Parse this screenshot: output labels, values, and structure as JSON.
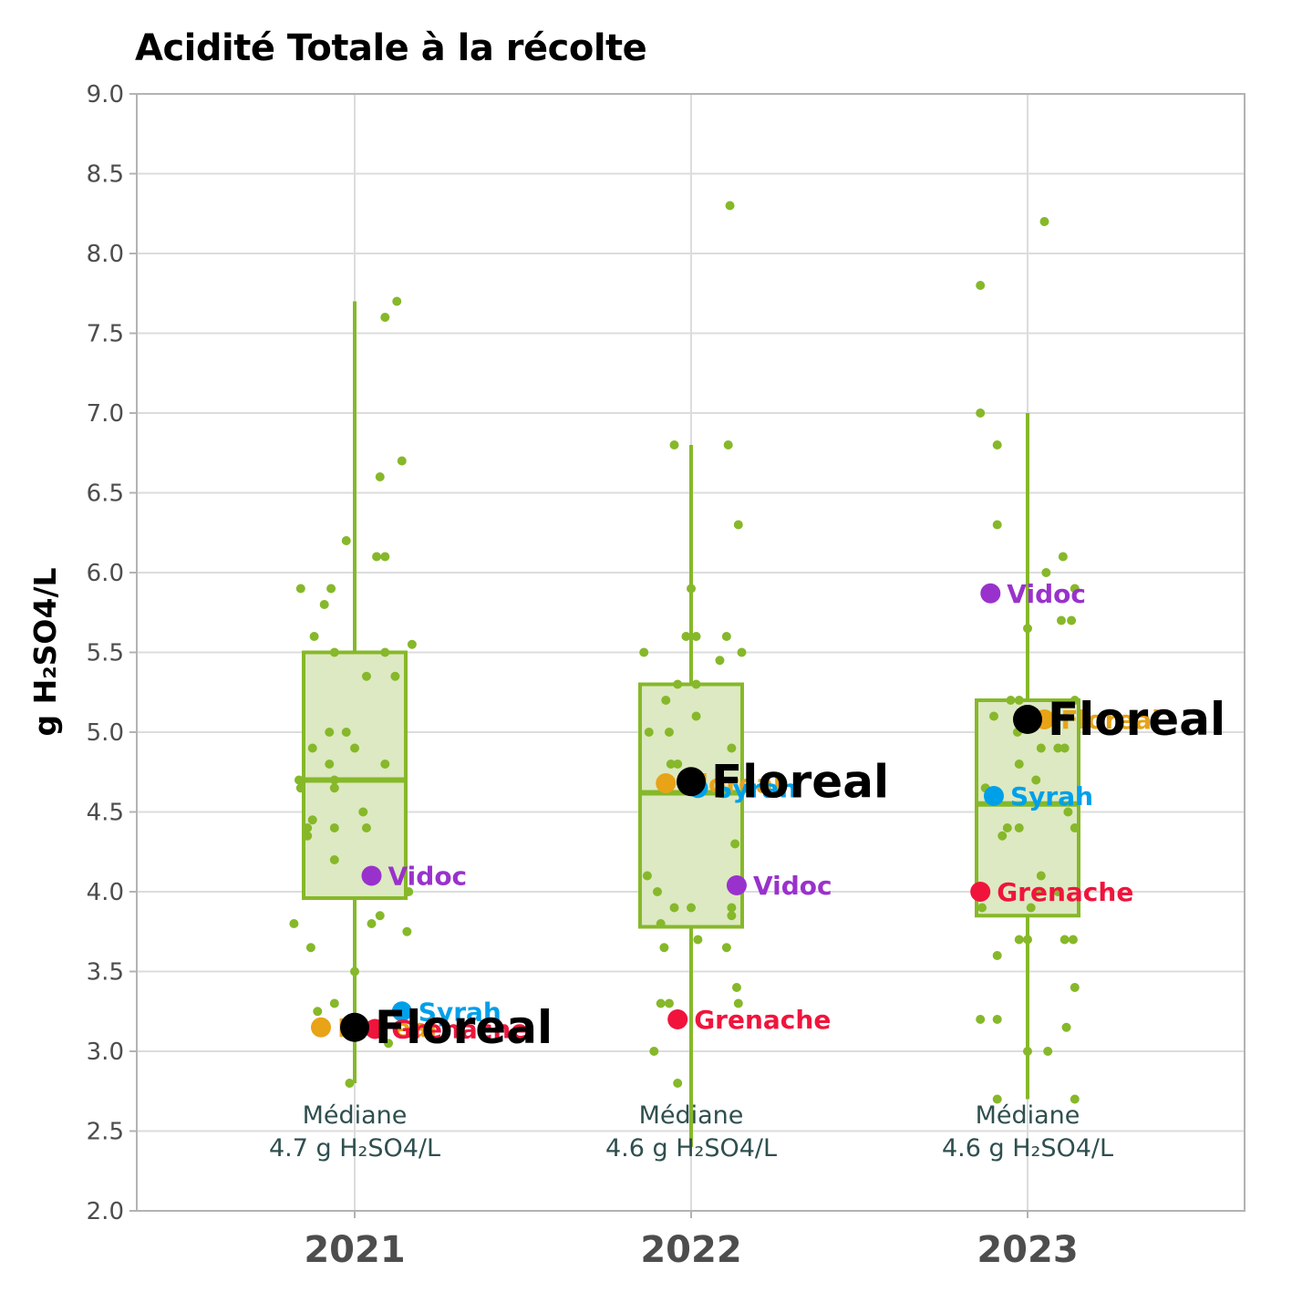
{
  "chart_data": {
    "type": "boxplot",
    "title": "Acidité Totale à la récolte",
    "xlabel": "",
    "ylabel": "g H₂SO4/L",
    "ylim": [
      2.0,
      9.0
    ],
    "yticks": [
      "2.0",
      "2.5",
      "3.0",
      "3.5",
      "4.0",
      "4.5",
      "5.0",
      "5.5",
      "6.0",
      "6.5",
      "7.0",
      "7.5",
      "8.0",
      "8.5",
      "9.0"
    ],
    "categories": [
      "2021",
      "2022",
      "2023"
    ],
    "grid": true,
    "colors": {
      "box_fill": "#dde9c2",
      "box_stroke": "#86b82a",
      "points": "#86b82a",
      "grid": "#dcdcdc",
      "panel_border": "#b3b3b3",
      "median_text": "#2f4f4f",
      "axis_text": "#4d4d4d"
    },
    "boxes": [
      {
        "year": "2021",
        "min": 2.8,
        "q1": 3.96,
        "median": 4.7,
        "q3": 5.5,
        "max": 7.7,
        "median_label": [
          "Médiane",
          "4.7 g H₂SO4/L"
        ]
      },
      {
        "year": "2022",
        "min": 2.4,
        "q1": 3.78,
        "median": 4.62,
        "q3": 5.3,
        "max": 6.8,
        "median_label": [
          "Médiane",
          "4.6 g H₂SO4/L"
        ]
      },
      {
        "year": "2023",
        "min": 2.7,
        "q1": 3.85,
        "median": 4.55,
        "q3": 5.2,
        "max": 7.0,
        "median_label": [
          "Médiane",
          "4.6 g H₂SO4/L"
        ]
      }
    ],
    "jitter_points": [
      [
        {
          "dx": 0.25,
          "y": 7.7
        },
        {
          "dx": 0.18,
          "y": 7.6
        },
        {
          "dx": 0.28,
          "y": 6.7
        },
        {
          "dx": 0.15,
          "y": 6.6
        },
        {
          "dx": -0.05,
          "y": 6.2
        },
        {
          "dx": 0.13,
          "y": 6.1
        },
        {
          "dx": 0.18,
          "y": 6.1
        },
        {
          "dx": -0.32,
          "y": 5.9
        },
        {
          "dx": -0.14,
          "y": 5.9
        },
        {
          "dx": -0.18,
          "y": 5.8
        },
        {
          "dx": -0.24,
          "y": 5.6
        },
        {
          "dx": 0.34,
          "y": 5.55
        },
        {
          "dx": -0.12,
          "y": 5.5
        },
        {
          "dx": 0.18,
          "y": 5.5
        },
        {
          "dx": 0.07,
          "y": 5.35
        },
        {
          "dx": 0.24,
          "y": 5.35
        },
        {
          "dx": -0.15,
          "y": 5.0
        },
        {
          "dx": -0.05,
          "y": 5.0
        },
        {
          "dx": -0.25,
          "y": 4.9
        },
        {
          "dx": 0.0,
          "y": 4.9
        },
        {
          "dx": -0.15,
          "y": 4.8
        },
        {
          "dx": 0.18,
          "y": 4.8
        },
        {
          "dx": -0.33,
          "y": 4.7
        },
        {
          "dx": -0.12,
          "y": 4.7
        },
        {
          "dx": -0.32,
          "y": 4.65
        },
        {
          "dx": -0.12,
          "y": 4.65
        },
        {
          "dx": 0.05,
          "y": 4.5
        },
        {
          "dx": -0.25,
          "y": 4.45
        },
        {
          "dx": -0.28,
          "y": 4.4
        },
        {
          "dx": -0.12,
          "y": 4.4
        },
        {
          "dx": 0.07,
          "y": 4.4
        },
        {
          "dx": -0.28,
          "y": 4.35
        },
        {
          "dx": -0.12,
          "y": 4.2
        },
        {
          "dx": 0.32,
          "y": 4.0
        },
        {
          "dx": 0.15,
          "y": 3.85
        },
        {
          "dx": 0.1,
          "y": 3.8
        },
        {
          "dx": -0.36,
          "y": 3.8
        },
        {
          "dx": 0.31,
          "y": 3.75
        },
        {
          "dx": -0.26,
          "y": 3.65
        },
        {
          "dx": 0.0,
          "y": 3.5
        },
        {
          "dx": -0.12,
          "y": 3.3
        },
        {
          "dx": -0.22,
          "y": 3.25
        },
        {
          "dx": 0.2,
          "y": 3.05
        },
        {
          "dx": -0.03,
          "y": 2.8
        }
      ],
      [
        {
          "dx": 0.23,
          "y": 8.3
        },
        {
          "dx": -0.1,
          "y": 6.8
        },
        {
          "dx": 0.22,
          "y": 6.8
        },
        {
          "dx": 0.28,
          "y": 6.3
        },
        {
          "dx": 0.0,
          "y": 5.9
        },
        {
          "dx": -0.03,
          "y": 5.6
        },
        {
          "dx": 0.03,
          "y": 5.6
        },
        {
          "dx": 0.21,
          "y": 5.6
        },
        {
          "dx": -0.28,
          "y": 5.5
        },
        {
          "dx": 0.3,
          "y": 5.5
        },
        {
          "dx": 0.17,
          "y": 5.45
        },
        {
          "dx": -0.08,
          "y": 5.3
        },
        {
          "dx": 0.03,
          "y": 5.3
        },
        {
          "dx": -0.15,
          "y": 5.2
        },
        {
          "dx": 0.03,
          "y": 5.1
        },
        {
          "dx": -0.25,
          "y": 5.0
        },
        {
          "dx": -0.13,
          "y": 5.0
        },
        {
          "dx": 0.24,
          "y": 4.9
        },
        {
          "dx": -0.12,
          "y": 4.8
        },
        {
          "dx": -0.08,
          "y": 4.8
        },
        {
          "dx": 0.26,
          "y": 4.3
        },
        {
          "dx": -0.26,
          "y": 4.1
        },
        {
          "dx": -0.2,
          "y": 4.0
        },
        {
          "dx": -0.1,
          "y": 3.9
        },
        {
          "dx": 0.0,
          "y": 3.9
        },
        {
          "dx": 0.24,
          "y": 3.9
        },
        {
          "dx": 0.24,
          "y": 3.85
        },
        {
          "dx": -0.18,
          "y": 3.8
        },
        {
          "dx": 0.04,
          "y": 3.7
        },
        {
          "dx": -0.16,
          "y": 3.65
        },
        {
          "dx": 0.21,
          "y": 3.65
        },
        {
          "dx": 0.27,
          "y": 3.4
        },
        {
          "dx": -0.18,
          "y": 3.3
        },
        {
          "dx": -0.13,
          "y": 3.3
        },
        {
          "dx": 0.28,
          "y": 3.3
        },
        {
          "dx": -0.22,
          "y": 3.0
        },
        {
          "dx": -0.08,
          "y": 2.8
        }
      ],
      [
        {
          "dx": 0.1,
          "y": 8.2
        },
        {
          "dx": -0.28,
          "y": 7.8
        },
        {
          "dx": -0.28,
          "y": 7.0
        },
        {
          "dx": -0.18,
          "y": 6.8
        },
        {
          "dx": -0.18,
          "y": 6.3
        },
        {
          "dx": 0.21,
          "y": 6.1
        },
        {
          "dx": 0.11,
          "y": 6.0
        },
        {
          "dx": 0.28,
          "y": 5.9
        },
        {
          "dx": 0.2,
          "y": 5.7
        },
        {
          "dx": 0.26,
          "y": 5.7
        },
        {
          "dx": 0.0,
          "y": 5.65
        },
        {
          "dx": -0.1,
          "y": 5.2
        },
        {
          "dx": -0.05,
          "y": 5.2
        },
        {
          "dx": 0.28,
          "y": 5.2
        },
        {
          "dx": -0.2,
          "y": 5.1
        },
        {
          "dx": -0.06,
          "y": 5.0
        },
        {
          "dx": 0.08,
          "y": 4.9
        },
        {
          "dx": 0.18,
          "y": 4.9
        },
        {
          "dx": 0.22,
          "y": 4.9
        },
        {
          "dx": -0.05,
          "y": 4.8
        },
        {
          "dx": 0.05,
          "y": 4.7
        },
        {
          "dx": -0.25,
          "y": 4.65
        },
        {
          "dx": 0.24,
          "y": 4.5
        },
        {
          "dx": -0.12,
          "y": 4.4
        },
        {
          "dx": -0.05,
          "y": 4.4
        },
        {
          "dx": 0.28,
          "y": 4.4
        },
        {
          "dx": -0.15,
          "y": 4.35
        },
        {
          "dx": 0.08,
          "y": 4.1
        },
        {
          "dx": 0.06,
          "y": 4.0
        },
        {
          "dx": 0.18,
          "y": 4.0
        },
        {
          "dx": -0.27,
          "y": 3.9
        },
        {
          "dx": 0.02,
          "y": 3.9
        },
        {
          "dx": -0.05,
          "y": 3.7
        },
        {
          "dx": 0.0,
          "y": 3.7
        },
        {
          "dx": 0.22,
          "y": 3.7
        },
        {
          "dx": 0.27,
          "y": 3.7
        },
        {
          "dx": -0.18,
          "y": 3.6
        },
        {
          "dx": 0.28,
          "y": 3.4
        },
        {
          "dx": -0.28,
          "y": 3.2
        },
        {
          "dx": -0.18,
          "y": 3.2
        },
        {
          "dx": 0.23,
          "y": 3.15
        },
        {
          "dx": 0.0,
          "y": 3.0
        },
        {
          "dx": 0.12,
          "y": 3.0
        },
        {
          "dx": -0.18,
          "y": 2.7
        },
        {
          "dx": 0.28,
          "y": 2.7
        }
      ]
    ],
    "highlighted": [
      {
        "year": "2021",
        "name": "Vidoc",
        "y": 4.1,
        "dx": 0.1,
        "color": "#9932cc"
      },
      {
        "year": "2021",
        "name": "Syrah",
        "y": 3.25,
        "dx": 0.28,
        "color": "#00a0e9"
      },
      {
        "year": "2021",
        "name": "Floreal",
        "y": 3.15,
        "dx": -0.2,
        "color": "#e8a317"
      },
      {
        "year": "2021",
        "name": "Grenache",
        "y": 3.14,
        "dx": 0.12,
        "color": "#f0143c"
      },
      {
        "year": "2021",
        "name": "Floreal",
        "y": 3.15,
        "dx": 0.0,
        "color": "#000000",
        "main": true
      },
      {
        "year": "2022",
        "name": "Floreal",
        "y": 4.68,
        "dx": -0.15,
        "color": "#e8a317"
      },
      {
        "year": "2022",
        "name": "Syrah",
        "y": 4.65,
        "dx": 0.04,
        "color": "#00a0e9"
      },
      {
        "year": "2022",
        "name": "Vidoc",
        "y": 4.04,
        "dx": 0.27,
        "color": "#9932cc"
      },
      {
        "year": "2022",
        "name": "Grenache",
        "y": 3.2,
        "dx": -0.08,
        "color": "#f0143c"
      },
      {
        "year": "2022",
        "name": "Floreal",
        "y": 4.69,
        "dx": 0.0,
        "color": "#000000",
        "main": true
      },
      {
        "year": "2023",
        "name": "Vidoc",
        "y": 5.87,
        "dx": -0.22,
        "color": "#9932cc"
      },
      {
        "year": "2023",
        "name": "Floreal",
        "y": 5.08,
        "dx": 0.1,
        "color": "#e8a317"
      },
      {
        "year": "2023",
        "name": "Syrah",
        "y": 4.6,
        "dx": -0.2,
        "color": "#00a0e9"
      },
      {
        "year": "2023",
        "name": "Grenache",
        "y": 4.0,
        "dx": -0.28,
        "color": "#f0143c"
      },
      {
        "year": "2023",
        "name": "Floreal",
        "y": 5.08,
        "dx": 0.0,
        "color": "#000000",
        "main": true
      }
    ]
  }
}
